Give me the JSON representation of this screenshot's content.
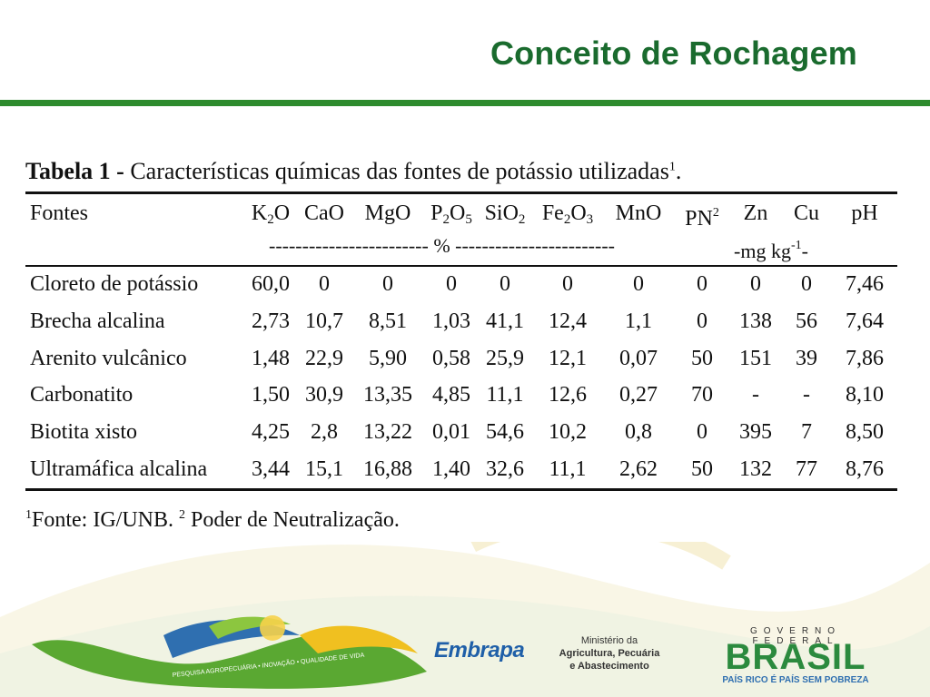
{
  "slide": {
    "title": "Conceito de Rochagem"
  },
  "table": {
    "caption_label": "Tabela 1 -",
    "caption_text": "Características químicas das fontes de potássio utilizadas",
    "caption_sup": "1",
    "caption_end": ".",
    "header": {
      "fontes": "Fontes",
      "k2o": [
        "K",
        "2",
        "O"
      ],
      "cao": "CaO",
      "mgo": "MgO",
      "p2o5": [
        "P",
        "2",
        "O",
        "5"
      ],
      "sio2": [
        "SiO",
        "2"
      ],
      "fe2o3": [
        "Fe",
        "2",
        "O",
        "3"
      ],
      "mno": "MnO",
      "pn": [
        "PN",
        "2"
      ],
      "zn": "Zn",
      "cu": "Cu",
      "ph": "pH",
      "unit_percent": "------------------------ % ------------------------",
      "unit_mgkg": [
        "-mg kg",
        "-1",
        "-"
      ]
    },
    "rows": [
      {
        "fonte": "Cloreto de potássio",
        "values": [
          "60,0",
          "0",
          "0",
          "0",
          "0",
          "0",
          "0",
          "0",
          "0",
          "0",
          "7,46"
        ]
      },
      {
        "fonte": "Brecha alcalina",
        "values": [
          "2,73",
          "10,7",
          "8,51",
          "1,03",
          "41,1",
          "12,4",
          "1,1",
          "0",
          "138",
          "56",
          "7,64"
        ]
      },
      {
        "fonte": "Arenito vulcânico",
        "values": [
          "1,48",
          "22,9",
          "5,90",
          "0,58",
          "25,9",
          "12,1",
          "0,07",
          "50",
          "151",
          "39",
          "7,86"
        ]
      },
      {
        "fonte": "Carbonatito",
        "values": [
          "1,50",
          "30,9",
          "13,35",
          "4,85",
          "11,1",
          "12,6",
          "0,27",
          "70",
          "-",
          "-",
          "8,10"
        ]
      },
      {
        "fonte": "Biotita xisto",
        "values": [
          "4,25",
          "2,8",
          "13,22",
          "0,01",
          "54,6",
          "10,2",
          "0,8",
          "0",
          "395",
          "7",
          "8,50"
        ]
      },
      {
        "fonte": "Ultramáfica alcalina",
        "values": [
          "3,44",
          "15,1",
          "16,88",
          "1,40",
          "32,6",
          "11,1",
          "2,62",
          "50",
          "132",
          "77",
          "8,76"
        ]
      }
    ],
    "footnote": {
      "sup1": "1",
      "text1": "Fonte: IG/UNB. ",
      "sup2": "2",
      "text2": " Poder de Neutralização."
    }
  },
  "logos": {
    "wave_text": "PESQUISA AGROPECUÁRIA • INOVAÇÃO • QUALIDADE DE VIDA",
    "embrapa": "Embrapa",
    "ministerio_line1": "Ministério da",
    "ministerio_line2": "Agricultura, Pecuária",
    "ministerio_line3": "e Abastecimento",
    "gov_top": "GOVERNO FEDERAL",
    "gov_word": "BRASIL",
    "gov_bottom": "PAÍS RICO É PAÍS SEM POBREZA"
  },
  "colors": {
    "title_green": "#1a6b2e",
    "rule_green": "#2e8b2e",
    "embrapa_blue": "#1f5fa8"
  }
}
